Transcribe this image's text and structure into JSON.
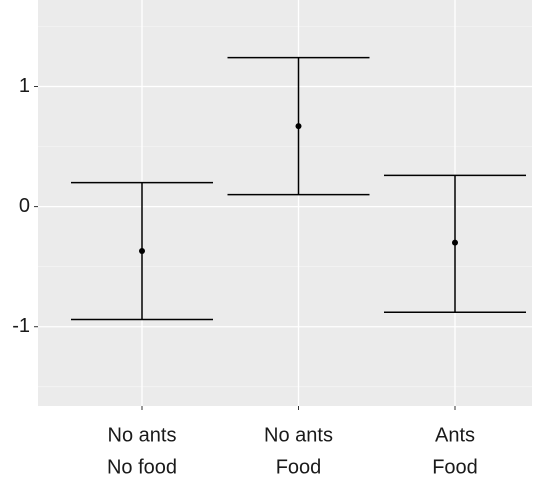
{
  "chart_data": {
    "type": "errorbar",
    "categories": [
      [
        "No ants",
        "No food"
      ],
      [
        "No ants",
        "Food"
      ],
      [
        "Ants",
        "Food"
      ]
    ],
    "values": [
      -0.37,
      0.67,
      -0.3
    ],
    "lower": [
      -0.94,
      0.1,
      -0.88
    ],
    "upper": [
      0.2,
      1.24,
      0.26
    ],
    "color": "#000000",
    "ylim": [
      -1.66,
      1.72
    ],
    "yticks": [
      -1,
      0,
      1
    ],
    "minor_yticks": [
      -1.5,
      -0.5,
      0.5,
      1.5
    ],
    "grid": true
  }
}
